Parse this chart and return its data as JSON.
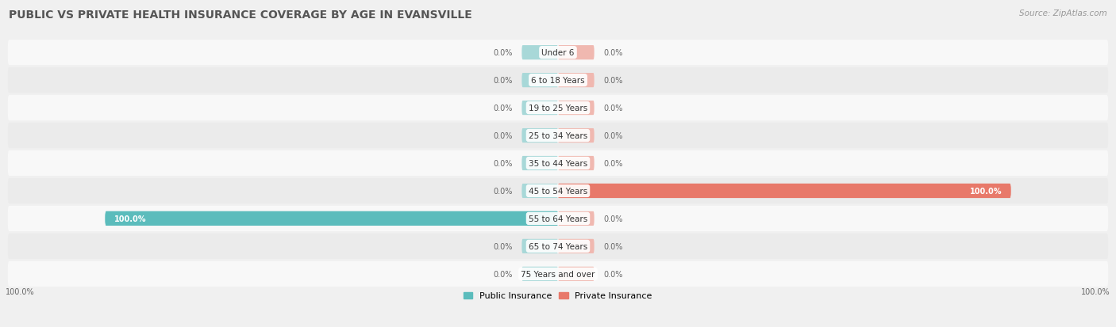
{
  "title": "PUBLIC VS PRIVATE HEALTH INSURANCE COVERAGE BY AGE IN EVANSVILLE",
  "source": "Source: ZipAtlas.com",
  "categories": [
    "Under 6",
    "6 to 18 Years",
    "19 to 25 Years",
    "25 to 34 Years",
    "35 to 44 Years",
    "45 to 54 Years",
    "55 to 64 Years",
    "65 to 74 Years",
    "75 Years and over"
  ],
  "public_values": [
    0.0,
    0.0,
    0.0,
    0.0,
    0.0,
    0.0,
    100.0,
    0.0,
    0.0
  ],
  "private_values": [
    0.0,
    0.0,
    0.0,
    0.0,
    0.0,
    100.0,
    0.0,
    0.0,
    0.0
  ],
  "public_color": "#5bbcbc",
  "private_color": "#e8796a",
  "public_color_bg": "#a8d8d8",
  "private_color_bg": "#f0b8b0",
  "public_label": "Public Insurance",
  "private_label": "Private Insurance",
  "bg_color": "#f0f0f0",
  "row_color_odd": "#f8f8f8",
  "row_color_even": "#ebebeb",
  "title_color": "#555555",
  "label_color": "#666666",
  "source_color": "#999999",
  "axis_label_left": "100.0%",
  "axis_label_right": "100.0%",
  "max_val": 100.0,
  "title_fontsize": 10,
  "source_fontsize": 7.5,
  "label_fontsize": 8,
  "bar_label_fontsize": 7,
  "category_fontsize": 7.5,
  "bar_min_display": 8.0
}
